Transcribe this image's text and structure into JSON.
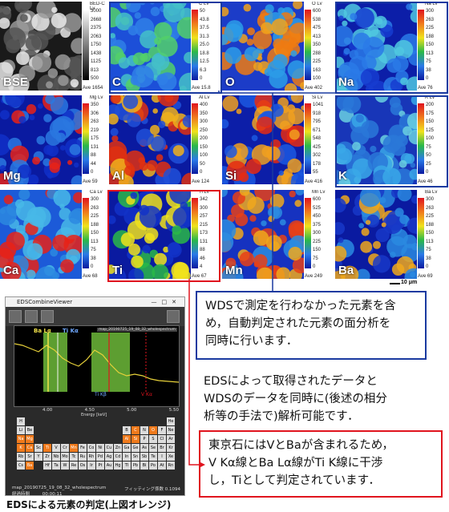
{
  "tiles": [
    {
      "id": "bse",
      "label": "BSE",
      "unit": "BED-C Lv",
      "ticks": [
        "3000",
        "2668",
        "2375",
        "2063",
        "1750",
        "1438",
        "1125",
        "813",
        "500"
      ],
      "ave": "Ave 1654",
      "palette": "gray"
    },
    {
      "id": "c",
      "label": "C",
      "unit": "C Lv",
      "ticks": [
        "50",
        "43.8",
        "37.5",
        "31.3",
        "25.0",
        "18.8",
        "12.5",
        "6.3",
        "0"
      ],
      "ave": "Ave 15.8",
      "palette": "c"
    },
    {
      "id": "o",
      "label": "O",
      "unit": "O Lv",
      "ticks": [
        "600",
        "538",
        "475",
        "413",
        "350",
        "288",
        "225",
        "163",
        "100"
      ],
      "ave": "Ave 402",
      "palette": "o"
    },
    {
      "id": "na",
      "label": "Na",
      "unit": "Na Lv",
      "ticks": [
        "300",
        "263",
        "225",
        "188",
        "150",
        "113",
        "75",
        "38",
        "0"
      ],
      "ave": "Ave 76",
      "palette": "na"
    },
    {
      "id": "mg",
      "label": "Mg",
      "unit": "Mg Lv",
      "ticks": [
        "350",
        "306",
        "263",
        "219",
        "175",
        "131",
        "88",
        "44",
        "0"
      ],
      "ave": "Ave 59",
      "palette": "mg"
    },
    {
      "id": "al",
      "label": "Al",
      "unit": "Al Lv",
      "ticks": [
        "400",
        "350",
        "300",
        "250",
        "200",
        "150",
        "100",
        "50",
        "0"
      ],
      "ave": "Ave 124",
      "palette": "al"
    },
    {
      "id": "si",
      "label": "Si",
      "unit": "Si Lv",
      "ticks": [
        "1041",
        "918",
        "795",
        "671",
        "548",
        "425",
        "302",
        "178",
        "55"
      ],
      "ave": "Ave 416",
      "palette": "si"
    },
    {
      "id": "k",
      "label": "K",
      "unit": "K Lv",
      "ticks": [
        "200",
        "175",
        "150",
        "125",
        "100",
        "75",
        "50",
        "25",
        "0"
      ],
      "ave": "Ave 46",
      "palette": "k"
    },
    {
      "id": "ca",
      "label": "Ca",
      "unit": "Ca Lv",
      "ticks": [
        "300",
        "263",
        "225",
        "188",
        "150",
        "113",
        "75",
        "38",
        "0"
      ],
      "ave": "Ave 68",
      "palette": "ca"
    },
    {
      "id": "ti",
      "label": "Ti",
      "unit": "Ti Lv",
      "ticks": [
        "342",
        "300",
        "257",
        "215",
        "173",
        "131",
        "88",
        "46",
        "4"
      ],
      "ave": "Ave 67",
      "palette": "ti"
    },
    {
      "id": "mn",
      "label": "Mn",
      "unit": "Mn Lv",
      "ticks": [
        "600",
        "525",
        "450",
        "375",
        "300",
        "225",
        "150",
        "75",
        "0"
      ],
      "ave": "Ave 249",
      "palette": "mn"
    },
    {
      "id": "ba",
      "label": "Ba",
      "unit": "Ba Lv",
      "ticks": [
        "300",
        "263",
        "225",
        "188",
        "150",
        "113",
        "75",
        "38",
        "0"
      ],
      "ave": "Ave 69",
      "palette": "ba"
    }
  ],
  "scale_bar": "10 μm",
  "notes": {
    "box1": [
      "WDSで測定を行わなかった元素を含",
      "め，自動判定された元素の面分析を",
      "同時に行います．"
    ],
    "box2": [
      "EDSによって取得されたデータと",
      "WDSのデータを同時に(後述の相分",
      "析等の手法で)解析可能です．"
    ],
    "box3": [
      "東京石にはVとBaが含まれるため，",
      "V Kα線とBa Lα線がTi K線に干渉",
      "し，Tiとして判定されています．"
    ]
  },
  "software": {
    "title": "EDSCombineViewer",
    "spectrum_file": "map_20190725_19_08_32_wholespectrum",
    "peaks": {
      "ba": "Ba Lα",
      "ti": "Ti Kα",
      "ti_kb": "Ti Kβ",
      "v": "V Kα"
    },
    "xlabel": "Energy [keV]",
    "xticks": [
      "4.00",
      "4.50",
      "5.00",
      "5.50"
    ],
    "ylabel": "Intensity [Counts]",
    "status_left": "map_20190725_19_08_32_wholespectrum",
    "status_right": "フィッティング係数 0.1094",
    "elapsed_label": "経過時間",
    "elapsed": "00:00:11"
  },
  "caption": "EDSによる元素の判定(上図オレンジ)"
}
